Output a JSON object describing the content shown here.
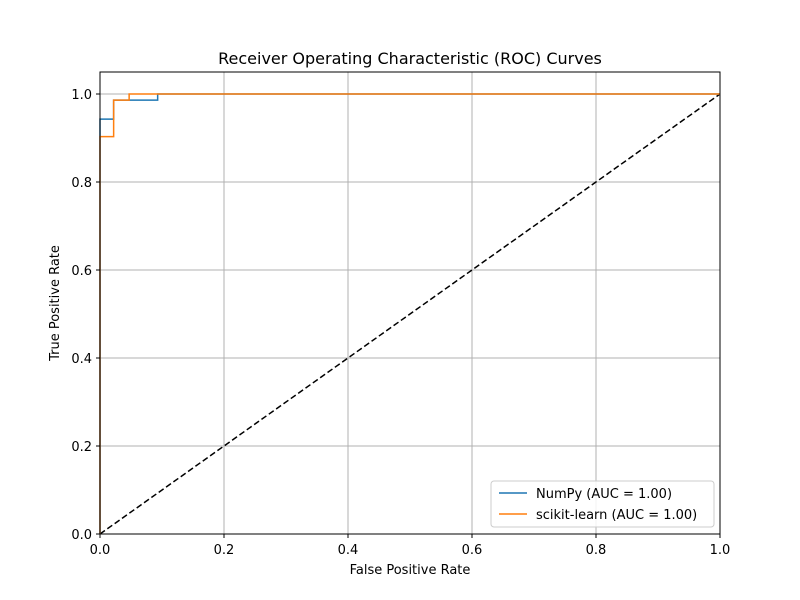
{
  "chart_data": {
    "type": "line",
    "title": "Receiver Operating Characteristic (ROC) Curves",
    "xlabel": "False Positive Rate",
    "ylabel": "True Positive Rate",
    "xlim": [
      0,
      1
    ],
    "ylim": [
      0,
      1.05
    ],
    "xticks": [
      0,
      0.2,
      0.4,
      0.6,
      0.8,
      1.0
    ],
    "xtick_labels": [
      "0.0",
      "0.2",
      "0.4",
      "0.6",
      "0.8",
      "1.0"
    ],
    "yticks": [
      0,
      0.2,
      0.4,
      0.6,
      0.8,
      1.0
    ],
    "ytick_labels": [
      "0.0",
      "0.2",
      "0.4",
      "0.6",
      "0.8",
      "1.0"
    ],
    "grid": true,
    "legend_position": "lower-right",
    "series": [
      {
        "name": "NumPy (AUC = 1.00)",
        "color": "#1f77b4",
        "x": [
          0,
          0,
          0.022,
          0.022,
          0.093,
          0.093,
          1.0
        ],
        "y": [
          0,
          0.943,
          0.943,
          0.986,
          0.986,
          1.0,
          1.0
        ]
      },
      {
        "name": "scikit-learn (AUC = 1.00)",
        "color": "#ff7f0e",
        "x": [
          0,
          0,
          0.022,
          0.022,
          0.047,
          0.047,
          1.0
        ],
        "y": [
          0,
          0.903,
          0.903,
          0.986,
          0.986,
          1.0,
          1.0
        ]
      }
    ],
    "reference_line": {
      "x": [
        0,
        1
      ],
      "y": [
        0,
        1
      ],
      "color": "#000000",
      "style": "dashed"
    }
  }
}
